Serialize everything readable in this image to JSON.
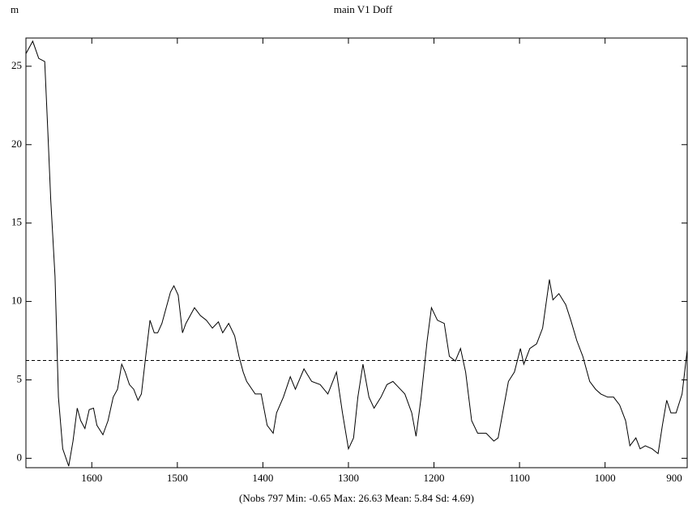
{
  "chart_data": {
    "type": "line",
    "title": "main V1 Doff",
    "y_label": "m",
    "footer": "(Nobs 797 Min: -0.65 Max: 26.63 Mean: 5.84 Sd: 4.69)",
    "x": [
      1677,
      1669,
      1662,
      1655,
      1651,
      1648,
      1643,
      1639,
      1634,
      1627,
      1622,
      1617,
      1613,
      1608,
      1603,
      1598,
      1594,
      1587,
      1581,
      1575,
      1570,
      1565,
      1561,
      1556,
      1551,
      1546,
      1542,
      1537,
      1532,
      1527,
      1523,
      1518,
      1513,
      1508,
      1504,
      1499,
      1494,
      1490,
      1480,
      1473,
      1466,
      1459,
      1452,
      1447,
      1440,
      1433,
      1428,
      1423,
      1419,
      1409,
      1402,
      1395,
      1388,
      1384,
      1376,
      1368,
      1362,
      1352,
      1343,
      1333,
      1324,
      1314,
      1307,
      1300,
      1294,
      1289,
      1283,
      1276,
      1270,
      1262,
      1255,
      1248,
      1241,
      1234,
      1226,
      1221,
      1215,
      1208,
      1203,
      1196,
      1188,
      1182,
      1175,
      1169,
      1163,
      1156,
      1149,
      1139,
      1130,
      1125,
      1118,
      1113,
      1106,
      1099,
      1095,
      1088,
      1080,
      1073,
      1065,
      1061,
      1054,
      1046,
      1040,
      1033,
      1026,
      1018,
      1011,
      1005,
      997,
      990,
      983,
      976,
      971,
      964,
      959,
      953,
      945,
      938,
      933,
      928,
      923,
      917,
      910,
      904
    ],
    "series": [
      {
        "color": "#000000",
        "values": [
          25.8,
          26.6,
          25.5,
          25.3,
          20.4,
          16.5,
          11.6,
          3.9,
          0.6,
          -0.5,
          1.1,
          3.2,
          2.4,
          1.9,
          3.1,
          3.2,
          2.1,
          1.5,
          2.4,
          3.9,
          4.4,
          6.0,
          5.5,
          4.7,
          4.4,
          3.7,
          4.1,
          6.5,
          8.8,
          8.0,
          8.0,
          8.6,
          9.6,
          10.6,
          11.0,
          10.4,
          8.0,
          8.6,
          9.6,
          9.1,
          8.8,
          8.3,
          8.7,
          8.0,
          8.6,
          7.8,
          6.5,
          5.5,
          4.9,
          4.1,
          4.1,
          2.1,
          1.6,
          2.9,
          3.9,
          5.2,
          4.4,
          5.7,
          4.9,
          4.7,
          4.1,
          5.5,
          2.9,
          0.6,
          1.3,
          3.9,
          6.0,
          3.9,
          3.2,
          3.9,
          4.7,
          4.9,
          4.5,
          4.1,
          2.9,
          1.4,
          3.9,
          7.5,
          9.6,
          8.8,
          8.6,
          6.5,
          6.2,
          7.0,
          5.5,
          2.4,
          1.6,
          1.6,
          1.1,
          1.3,
          3.4,
          4.9,
          5.5,
          7.0,
          6.0,
          7.0,
          7.3,
          8.3,
          11.4,
          10.1,
          10.5,
          9.8,
          8.8,
          7.5,
          6.5,
          4.9,
          4.4,
          4.1,
          3.9,
          3.9,
          3.4,
          2.4,
          0.8,
          1.3,
          0.6,
          0.8,
          0.6,
          0.3,
          2.1,
          3.7,
          2.9,
          2.9,
          4.1,
          6.9
        ]
      }
    ],
    "reference_line": 6.24,
    "xlim": [
      1677,
      904
    ],
    "ylim": [
      -0.6,
      26.8
    ],
    "xticks": [
      1600,
      1500,
      1400,
      1300,
      1200,
      1100,
      1000,
      900
    ],
    "yticks": [
      0,
      5,
      10,
      15,
      20,
      25
    ]
  }
}
